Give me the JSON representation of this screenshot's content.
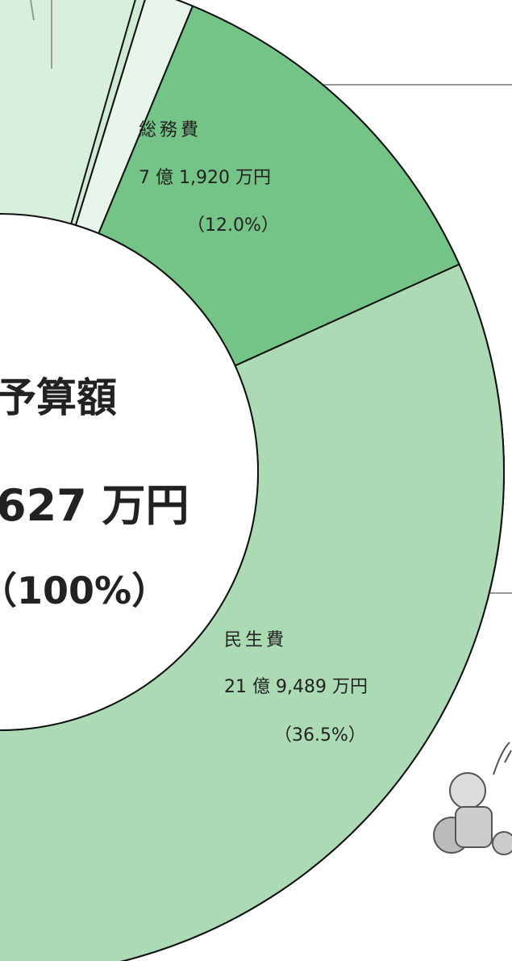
{
  "chart_data": {
    "type": "donut",
    "categories": [
      null,
      null,
      "総務費",
      "民生費"
    ],
    "amounts": [
      null,
      null,
      "7 億 1,920 万円",
      "21 億 9,489 万円"
    ],
    "values": [
      0.3,
      1.5,
      12.0,
      36.5
    ],
    "value_labels": [
      null,
      null,
      "（12.0%）",
      "（36.5%）"
    ],
    "colors": [
      "#cfe9d5",
      "#e8f5ea",
      "#74c387",
      "#acdab5"
    ],
    "center_labels": [
      "予算額",
      "627 万円",
      "（100%）"
    ]
  }
}
